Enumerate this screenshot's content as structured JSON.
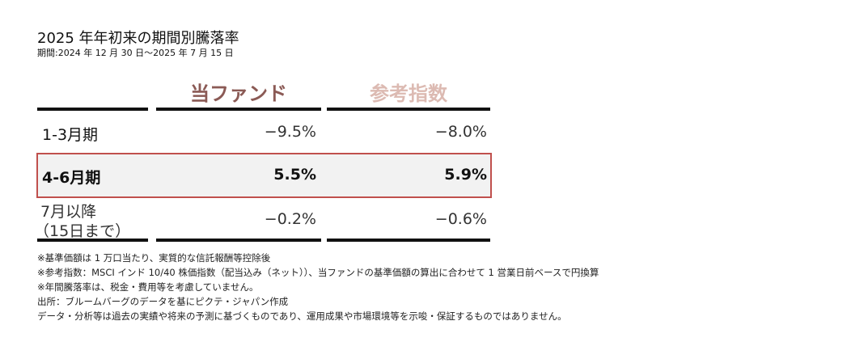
{
  "title": "2025 年年初来の期間別騰落率",
  "period": "期間:2024 年 12 月 30 日～2025 年 7 月 15 日",
  "columns": {
    "fund": "当ファンド",
    "index": "参考指数"
  },
  "colors": {
    "fund": "#8b5a55",
    "index": "#dcbab2",
    "highlight": "#c0504d"
  },
  "rows": [
    {
      "label": "1-3月期",
      "fund": "−9.5%",
      "index": "−8.0%"
    },
    {
      "label": "4-6月期",
      "fund": "5.5%",
      "index": "5.9%"
    },
    {
      "label": "7月以降",
      "label2": "（15日まで）",
      "fund": "−0.2%",
      "index": "−0.6%"
    }
  ],
  "footnotes": [
    "※基準価額は 1 万口当たり、実質的な信託報酬等控除後",
    "※参考指数：MSCI インド 10/40 株価指数（配当込み（ネット））、当ファンドの基準価額の算出に合わせて 1 営業日前ベースで円換算",
    "※年間騰落率は、税金・費用等を考慮していません。",
    "出所：ブルームバーグのデータを基にピクテ・ジャパン作成",
    "データ・分析等は過去の実績や将来の予測に基づくものであり、運用成果や市場環境等を示唆・保証するものではありません。"
  ]
}
